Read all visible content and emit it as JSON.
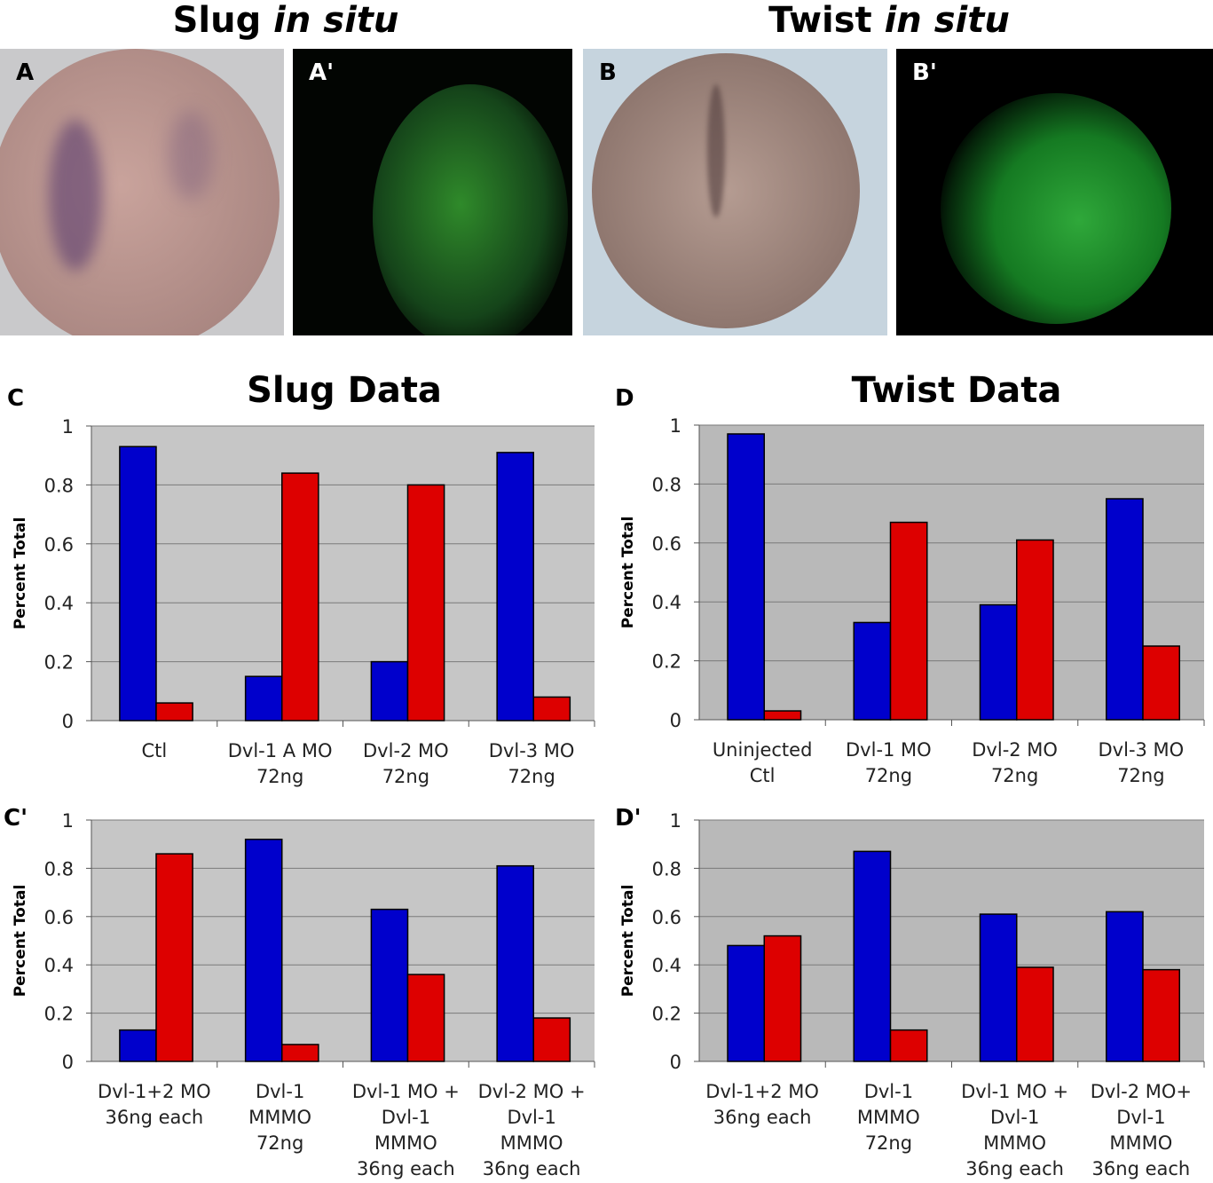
{
  "headers": [
    {
      "main": "Slug",
      "italic": "in situ"
    },
    {
      "main": "Twist",
      "italic": "in situ"
    }
  ],
  "photos": [
    {
      "label": "A"
    },
    {
      "label": "A'"
    },
    {
      "label": "B"
    },
    {
      "label": "B'"
    }
  ],
  "colors": {
    "series1": "#0000cc",
    "series2": "#dd0000"
  },
  "chart_data": [
    {
      "panel": "C",
      "type": "bar",
      "title": "Slug Data",
      "ylabel": "Percent Total",
      "ylim": [
        0,
        1
      ],
      "yticks": [
        "0",
        "0.2",
        "0.4",
        "0.6",
        "0.8",
        "1"
      ],
      "categories": [
        "Ctl",
        "Dvl-1 A MO\n72ng",
        "Dvl-2 MO\n72ng",
        "Dvl-3 MO\n72ng"
      ],
      "series": [
        {
          "name": "blue",
          "values": [
            0.93,
            0.15,
            0.2,
            0.91
          ]
        },
        {
          "name": "red",
          "values": [
            0.06,
            0.84,
            0.8,
            0.08
          ]
        }
      ]
    },
    {
      "panel": "D",
      "type": "bar",
      "title": "Twist Data",
      "ylabel": "Percent Total",
      "ylim": [
        0,
        1
      ],
      "yticks": [
        "0",
        "0.2",
        "0.4",
        "0.6",
        "0.8",
        "1"
      ],
      "categories": [
        "Uninjected\nCtl",
        "Dvl-1 MO\n72ng",
        "Dvl-2 MO\n72ng",
        "Dvl-3 MO\n72ng"
      ],
      "series": [
        {
          "name": "blue",
          "values": [
            0.97,
            0.33,
            0.39,
            0.75
          ]
        },
        {
          "name": "red",
          "values": [
            0.03,
            0.67,
            0.61,
            0.25
          ]
        }
      ]
    },
    {
      "panel": "C'",
      "type": "bar",
      "title": "",
      "ylabel": "Percent Total",
      "ylim": [
        0,
        1
      ],
      "yticks": [
        "0",
        "0.2",
        "0.4",
        "0.6",
        "0.8",
        "1"
      ],
      "categories": [
        "Dvl-1+2 MO\n36ng each",
        "Dvl-1\nMMMO\n72ng",
        "Dvl-1 MO +\nDvl-1\nMMMO\n36ng each",
        "Dvl-2 MO +\nDvl-1\nMMMO\n36ng each"
      ],
      "series": [
        {
          "name": "blue",
          "values": [
            0.13,
            0.92,
            0.63,
            0.81
          ]
        },
        {
          "name": "red",
          "values": [
            0.86,
            0.07,
            0.36,
            0.18
          ]
        }
      ]
    },
    {
      "panel": "D'",
      "type": "bar",
      "title": "",
      "ylabel": "Percent Total",
      "ylim": [
        0,
        1
      ],
      "yticks": [
        "0",
        "0.2",
        "0.4",
        "0.6",
        "0.8",
        "1"
      ],
      "categories": [
        "Dvl-1+2 MO\n36ng each",
        "Dvl-1\nMMMO\n72ng",
        "Dvl-1 MO +\nDvl-1\nMMMO\n36ng each",
        "Dvl-2 MO+\nDvl-1\nMMMO\n36ng each"
      ],
      "series": [
        {
          "name": "blue",
          "values": [
            0.48,
            0.87,
            0.61,
            0.62
          ]
        },
        {
          "name": "red",
          "values": [
            0.52,
            0.13,
            0.39,
            0.38
          ]
        }
      ]
    }
  ]
}
